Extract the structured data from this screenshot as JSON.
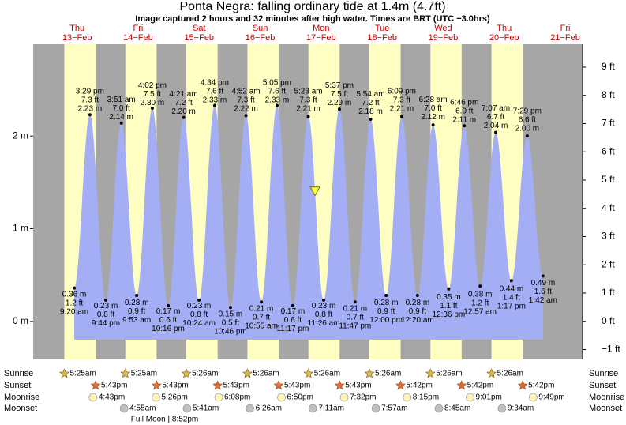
{
  "chart_data": {
    "type": "tide",
    "title": "Ponta Negra: falling  ordinary tide at 1.4m (4.7ft)",
    "subtitle": "Image captured 2 hours and 32 minutes after high water. Times are BRT (UTC −3.0hrs)",
    "ylim": [
      -0.41,
      2.99
    ],
    "yticks": [
      {
        "value": 0,
        "label": "0 m"
      },
      {
        "value": 1,
        "label": "1 m"
      },
      {
        "value": 2,
        "label": "2 m"
      }
    ],
    "y2lim": [
      -1.35,
      9.81
    ],
    "y2ticks": [
      {
        "value": -1,
        "label": "−1 ft"
      },
      {
        "value": 0,
        "label": "0 ft"
      },
      {
        "value": 1,
        "label": "1 ft"
      },
      {
        "value": 2,
        "label": "2 ft"
      },
      {
        "value": 3,
        "label": "3 ft"
      },
      {
        "value": 4,
        "label": "4 ft"
      },
      {
        "value": 5,
        "label": "5 ft"
      },
      {
        "value": 6,
        "label": "6 ft"
      },
      {
        "value": 7,
        "label": "7 ft"
      },
      {
        "value": 8,
        "label": "8 ft"
      },
      {
        "value": 9,
        "label": "9 ft"
      }
    ],
    "color": "#a3aef5",
    "rows": {
      "sunrise": "Sunrise",
      "sunset": "Sunset",
      "moonrise": "Moonrise",
      "moonset": "Moonset"
    },
    "days": [
      {
        "weekday": "Thu",
        "date": "13−Feb",
        "sunrise": "5:25am",
        "sunset": "5:43pm",
        "moonrise": "4:43pm",
        "tides": [
          {
            "time": "9:20 am",
            "m": 0.36,
            "m_label": "0.36 m",
            "ft": 1.2,
            "ft_label": "1.2 ft"
          },
          {
            "time": "3:29 pm",
            "m": 2.23,
            "m_label": "2.23 m",
            "ft": 7.3,
            "ft_label": "7.3 ft"
          },
          {
            "time": "9:44 pm",
            "m": 0.23,
            "m_label": "0.23 m",
            "ft": 0.8,
            "ft_label": "0.8 ft"
          }
        ]
      },
      {
        "weekday": "Fri",
        "date": "14−Feb",
        "sunrise": "5:25am",
        "sunset": "5:43pm",
        "moonrise": "5:26pm",
        "moonset": "4:55am",
        "moon_phase": "Full Moon | 8:52pm",
        "tides": [
          {
            "time": "3:51 am",
            "m": 2.14,
            "m_label": "2.14 m",
            "ft": 7.0,
            "ft_label": "7.0 ft"
          },
          {
            "time": "9:53 am",
            "m": 0.28,
            "m_label": "0.28 m",
            "ft": 0.9,
            "ft_label": "0.9 ft"
          },
          {
            "time": "4:02 pm",
            "m": 2.3,
            "m_label": "2.30 m",
            "ft": 7.5,
            "ft_label": "7.5 ft"
          },
          {
            "time": "10:16 pm",
            "m": 0.17,
            "m_label": "0.17 m",
            "ft": 0.6,
            "ft_label": "0.6 ft"
          }
        ]
      },
      {
        "weekday": "Sat",
        "date": "15−Feb",
        "sunrise": "5:26am",
        "sunset": "5:43pm",
        "moonrise": "6:08pm",
        "moonset": "5:41am",
        "tides": [
          {
            "time": "4:21 am",
            "m": 2.2,
            "m_label": "2.20 m",
            "ft": 7.2,
            "ft_label": "7.2 ft"
          },
          {
            "time": "10:24 am",
            "m": 0.23,
            "m_label": "0.23 m",
            "ft": 0.8,
            "ft_label": "0.8 ft"
          },
          {
            "time": "4:34 pm",
            "m": 2.33,
            "m_label": "2.33 m",
            "ft": 7.6,
            "ft_label": "7.6 ft"
          },
          {
            "time": "10:46 pm",
            "m": 0.15,
            "m_label": "0.15 m",
            "ft": 0.5,
            "ft_label": "0.5 ft"
          }
        ]
      },
      {
        "weekday": "Sun",
        "date": "16−Feb",
        "sunrise": "5:26am",
        "sunset": "5:43pm",
        "moonrise": "6:50pm",
        "moonset": "6:26am",
        "tides": [
          {
            "time": "4:52 am",
            "m": 2.22,
            "m_label": "2.22 m",
            "ft": 7.3,
            "ft_label": "7.3 ft"
          },
          {
            "time": "10:55 am",
            "m": 0.21,
            "m_label": "0.21 m",
            "ft": 0.7,
            "ft_label": "0.7 ft"
          },
          {
            "time": "5:05 pm",
            "m": 2.33,
            "m_label": "2.33 m",
            "ft": 7.6,
            "ft_label": "7.6 ft"
          },
          {
            "time": "11:17 pm",
            "m": 0.17,
            "m_label": "0.17 m",
            "ft": 0.6,
            "ft_label": "0.6 ft"
          }
        ]
      },
      {
        "weekday": "Mon",
        "date": "17−Feb",
        "sunrise": "5:26am",
        "sunset": "5:43pm",
        "moonrise": "7:32pm",
        "moonset": "7:11am",
        "current_height_m": 1.4,
        "tides": [
          {
            "time": "5:23 am",
            "m": 2.21,
            "m_label": "2.21 m",
            "ft": 7.3,
            "ft_label": "7.3 ft"
          },
          {
            "time": "11:26 am",
            "m": 0.23,
            "m_label": "0.23 m",
            "ft": 0.8,
            "ft_label": "0.8 ft"
          },
          {
            "time": "5:37 pm",
            "m": 2.29,
            "m_label": "2.29 m",
            "ft": 7.5,
            "ft_label": "7.5 ft"
          },
          {
            "time": "11:47 pm",
            "m": 0.21,
            "m_label": "0.21 m",
            "ft": 0.7,
            "ft_label": "0.7 ft"
          }
        ]
      },
      {
        "weekday": "Tue",
        "date": "18−Feb",
        "sunrise": "5:26am",
        "sunset": "5:42pm",
        "moonrise": "8:15pm",
        "moonset": "7:57am",
        "tides": [
          {
            "time": "5:54 am",
            "m": 2.18,
            "m_label": "2.18 m",
            "ft": 7.2,
            "ft_label": "7.2 ft"
          },
          {
            "time": "12:00 pm",
            "m": 0.28,
            "m_label": "0.28 m",
            "ft": 0.9,
            "ft_label": "0.9 ft"
          },
          {
            "time": "6:09 pm",
            "m": 2.21,
            "m_label": "2.21 m",
            "ft": 7.3,
            "ft_label": "7.3 ft"
          }
        ]
      },
      {
        "weekday": "Wed",
        "date": "19−Feb",
        "sunrise": "5:26am",
        "sunset": "5:42pm",
        "moonrise": "9:01pm",
        "moonset": "8:45am",
        "tides": [
          {
            "time": "12:20 am",
            "m": 0.28,
            "m_label": "0.28 m",
            "ft": 0.9,
            "ft_label": "0.9 ft"
          },
          {
            "time": "6:28 am",
            "m": 2.12,
            "m_label": "2.12 m",
            "ft": 7.0,
            "ft_label": "7.0 ft"
          },
          {
            "time": "12:36 pm",
            "m": 0.35,
            "m_label": "0.35 m",
            "ft": 1.1,
            "ft_label": "1.1 ft"
          },
          {
            "time": "6:46 pm",
            "m": 2.11,
            "m_label": "2.11 m",
            "ft": 6.9,
            "ft_label": "6.9 ft"
          }
        ]
      },
      {
        "weekday": "Thu",
        "date": "20−Feb",
        "sunrise": "5:26am",
        "sunset": "5:42pm",
        "moonrise": "9:49pm",
        "moonset": "9:34am",
        "tides": [
          {
            "time": "12:57 am",
            "m": 0.38,
            "m_label": "0.38 m",
            "ft": 1.2,
            "ft_label": "1.2 ft"
          },
          {
            "time": "7:07 am",
            "m": 2.04,
            "m_label": "2.04 m",
            "ft": 6.7,
            "ft_label": "6.7 ft"
          },
          {
            "time": "1:17 pm",
            "m": 0.44,
            "m_label": "0.44 m",
            "ft": 1.4,
            "ft_label": "1.4 ft"
          },
          {
            "time": "7:29 pm",
            "m": 2.0,
            "m_label": "2.00 m",
            "ft": 6.6,
            "ft_label": "6.6 ft"
          }
        ]
      },
      {
        "weekday": "Fri",
        "date": "21−Feb",
        "tides": [
          {
            "time": "1:42 am",
            "m": 0.49,
            "m_label": "0.49 m",
            "ft": 1.6,
            "ft_label": "1.6 ft"
          }
        ]
      }
    ]
  }
}
